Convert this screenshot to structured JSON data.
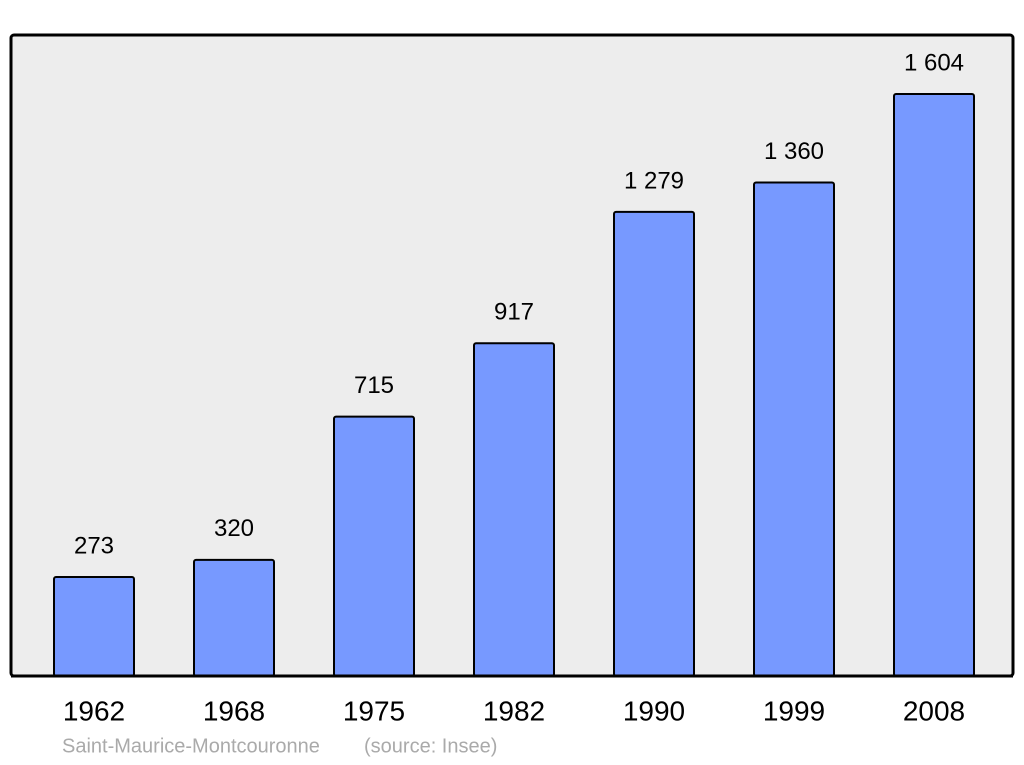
{
  "chart_data": {
    "type": "bar",
    "categories": [
      "1962",
      "1968",
      "1975",
      "1982",
      "1990",
      "1999",
      "2008"
    ],
    "values": [
      273,
      320,
      715,
      917,
      1279,
      1360,
      1604
    ],
    "value_labels": [
      "273",
      "320",
      "715",
      "917",
      "1 279",
      "1 360",
      "1 604"
    ],
    "color": "#7799ff",
    "caption": "Saint-Maurice-Montcouronne",
    "source": "(source: Insee)"
  }
}
